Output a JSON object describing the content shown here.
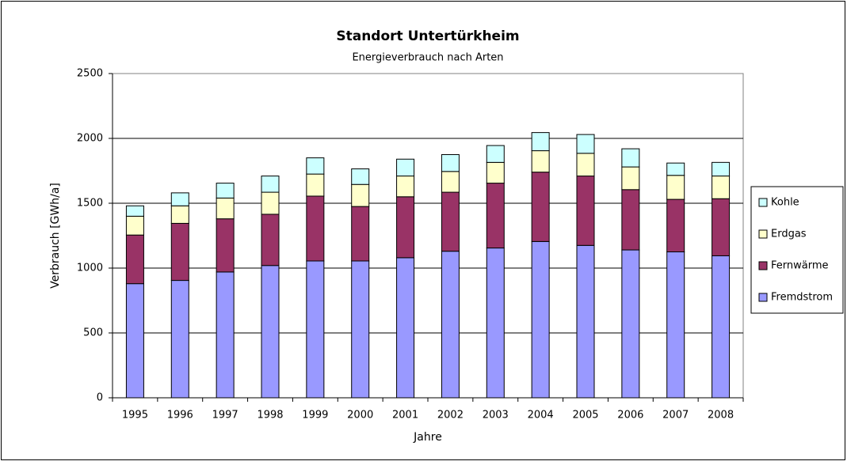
{
  "chart_data": {
    "type": "stacked_bar",
    "title": "Standort Untertürkheim",
    "subtitle": "Energieverbrauch nach Arten",
    "x_label": "Jahre",
    "y_label": "Verbrauch [GWh/a]",
    "categories": [
      "1995",
      "1996",
      "1997",
      "1998",
      "1999",
      "2000",
      "2001",
      "2002",
      "2003",
      "2004",
      "2005",
      "2006",
      "2007",
      "2008"
    ],
    "series": [
      {
        "name": "Fremdstrom",
        "color": "#9999ff",
        "values": [
          880,
          905,
          970,
          1020,
          1055,
          1055,
          1080,
          1130,
          1155,
          1205,
          1175,
          1140,
          1125,
          1095
        ]
      },
      {
        "name": "Fernwärme",
        "color": "#993366",
        "values": [
          375,
          440,
          410,
          395,
          500,
          420,
          470,
          455,
          500,
          535,
          535,
          465,
          405,
          440
        ]
      },
      {
        "name": "Erdgas",
        "color": "#ffffcc",
        "values": [
          145,
          135,
          160,
          170,
          170,
          170,
          160,
          160,
          160,
          165,
          175,
          175,
          185,
          175
        ]
      },
      {
        "name": "Kohle",
        "color": "#ccffff",
        "values": [
          80,
          100,
          115,
          125,
          125,
          120,
          130,
          130,
          130,
          140,
          145,
          140,
          95,
          105
        ]
      }
    ],
    "ylim": [
      0,
      2500
    ],
    "yticks": [
      0,
      500,
      1000,
      1500,
      2000,
      2500
    ],
    "grid": true,
    "legend": "right"
  }
}
